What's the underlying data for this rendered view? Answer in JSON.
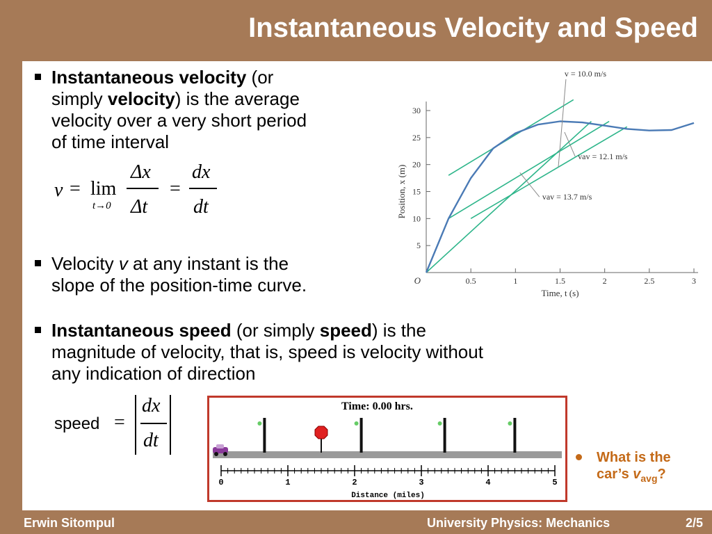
{
  "slide": {
    "title": "Instantaneous Velocity and Speed",
    "footer": {
      "author": "Erwin Sitompul",
      "course": "University Physics: Mechanics",
      "page": "2/5"
    }
  },
  "bullets": {
    "b1": {
      "bold1": "Instantaneous velocity",
      "t1": " (or",
      "t2": "simply ",
      "bold2": "velocity",
      "t3": ") is the average",
      "t4": "velocity over a very short period",
      "t5": "of time interval"
    },
    "b2": {
      "t1": "Velocity ",
      "v": "v",
      "t2": " at any instant is the",
      "t3": "slope of the position-time curve."
    },
    "b3": {
      "bold1": "Instantaneous speed",
      "t1": " (or simply ",
      "bold2": "speed",
      "t2": ") is the",
      "t3": "magnitude of velocity, that is, speed is velocity without",
      "t4": "any indication of direction"
    }
  },
  "formula1": {
    "v": "v",
    "eq": "=",
    "lim": "lim",
    "sub": "t→0",
    "dx": "Δx",
    "dt": "Δt",
    "eq2": "=",
    "num": "dx",
    "den": "dt"
  },
  "formula2": {
    "speed": "speed",
    "eq": "=",
    "num": "dx",
    "den": "dt"
  },
  "chart_data": {
    "type": "line",
    "xlabel": "Time, t (s)",
    "ylabel": "Position, x (m)",
    "xlim": [
      0,
      3
    ],
    "ylim": [
      0,
      30
    ],
    "x_ticks": [
      "0.5",
      "1",
      "1.5",
      "2",
      "2.5",
      "3"
    ],
    "y_ticks": [
      "5",
      "10",
      "15",
      "20",
      "25",
      "30"
    ],
    "origin_label": "O",
    "series": [
      {
        "x": [
          0,
          0.25,
          0.5,
          0.75,
          1.0,
          1.25,
          1.5,
          1.75,
          2.0,
          2.25,
          2.5,
          2.75,
          3.0
        ],
        "y": [
          0,
          10,
          17.5,
          23,
          25.8,
          27.4,
          28,
          27.8,
          27.2,
          26.6,
          26.3,
          26.4,
          27.7
        ]
      }
    ],
    "tangents": [
      {
        "x": [
          0.25,
          1.65
        ],
        "y": [
          18,
          32
        ]
      },
      {
        "x": [
          0.0,
          1.85
        ],
        "y": [
          0,
          28
        ]
      },
      {
        "x": [
          0.25,
          2.05
        ],
        "y": [
          10,
          28
        ]
      },
      {
        "x": [
          0.5,
          2.25
        ],
        "y": [
          10,
          27
        ]
      }
    ],
    "annotations": [
      {
        "label": "v = 10.0 m/s",
        "x": 1.55,
        "y": 37
      },
      {
        "label": "vav = 12.1 m/s",
        "x": 1.7,
        "y": 21
      },
      {
        "label": "vav = 13.7 m/s",
        "x": 1.3,
        "y": 13.5
      }
    ]
  },
  "animation": {
    "time_label": "Time: 0.00 hrs.",
    "axis_label": "Distance (miles)",
    "ticks": [
      "0",
      "1",
      "2",
      "3",
      "4",
      "5"
    ]
  },
  "question": {
    "line1": "What is the",
    "line2": "car’s ",
    "v": "v",
    "sub": "avg",
    "q": "?"
  },
  "colors": {
    "background": "#a67a57",
    "curve": "#4a7ab5",
    "tangent": "#2db58a",
    "accent": "#c46a18",
    "frame": "#c0392b"
  }
}
